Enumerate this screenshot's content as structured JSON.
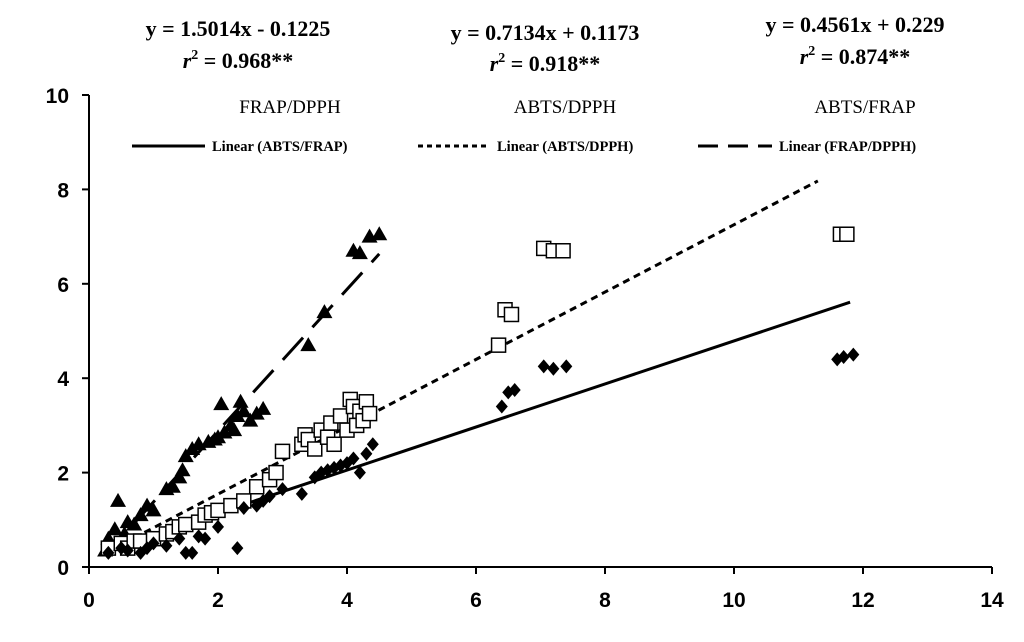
{
  "chart_data": {
    "type": "scatter",
    "xlim": [
      0,
      14
    ],
    "ylim": [
      0,
      10
    ],
    "x_ticks": [
      "0",
      "2",
      "4",
      "6",
      "8",
      "10",
      "12",
      "14"
    ],
    "y_ticks": [
      "0",
      "2",
      "4",
      "6",
      "8",
      "10"
    ],
    "grid": false,
    "legend_position": "top",
    "equations": [
      {
        "line": "y = 1.5014x - 0.1225",
        "r2": "0.968**"
      },
      {
        "line": "y = 0.7134x + 0.1173",
        "r2": "0.918**"
      },
      {
        "line": "y = 0.4561x + 0.229",
        "r2": "0.874**"
      }
    ],
    "group_labels": [
      "FRAP/DPPH",
      "ABTS/DPPH",
      "ABTS/FRAP"
    ],
    "legend": [
      {
        "label": "Linear (ABTS/FRAP)",
        "style": "solid"
      },
      {
        "label": "Linear (ABTS/DPPH)",
        "style": "dotted"
      },
      {
        "label": "Linear (FRAP/DPPH)",
        "style": "dashed"
      }
    ],
    "series": [
      {
        "name": "FRAP/DPPH",
        "marker": "triangle",
        "points": [
          [
            0.25,
            0.35
          ],
          [
            0.3,
            0.6
          ],
          [
            0.4,
            0.8
          ],
          [
            0.45,
            1.4
          ],
          [
            0.55,
            0.7
          ],
          [
            0.6,
            0.95
          ],
          [
            0.7,
            0.9
          ],
          [
            0.8,
            1.1
          ],
          [
            0.9,
            1.3
          ],
          [
            1.0,
            1.2
          ],
          [
            1.2,
            1.65
          ],
          [
            1.3,
            1.7
          ],
          [
            1.4,
            1.9
          ],
          [
            1.45,
            2.05
          ],
          [
            1.5,
            2.35
          ],
          [
            1.6,
            2.5
          ],
          [
            1.7,
            2.6
          ],
          [
            1.85,
            2.65
          ],
          [
            1.95,
            2.7
          ],
          [
            2.0,
            2.75
          ],
          [
            2.05,
            3.45
          ],
          [
            2.1,
            2.85
          ],
          [
            2.2,
            3.0
          ],
          [
            2.25,
            2.9
          ],
          [
            2.3,
            3.2
          ],
          [
            2.35,
            3.5
          ],
          [
            2.4,
            3.3
          ],
          [
            2.5,
            3.1
          ],
          [
            2.6,
            3.25
          ],
          [
            2.7,
            3.35
          ],
          [
            3.4,
            4.7
          ],
          [
            3.65,
            5.4
          ],
          [
            4.1,
            6.7
          ],
          [
            4.2,
            6.65
          ],
          [
            4.35,
            7.0
          ],
          [
            4.5,
            7.05
          ]
        ]
      },
      {
        "name": "ABTS/DPPH",
        "marker": "square-open",
        "points": [
          [
            0.3,
            0.4
          ],
          [
            0.5,
            0.5
          ],
          [
            0.6,
            0.4
          ],
          [
            0.7,
            0.55
          ],
          [
            0.8,
            0.55
          ],
          [
            1.0,
            0.6
          ],
          [
            1.2,
            0.7
          ],
          [
            1.3,
            0.75
          ],
          [
            1.4,
            0.85
          ],
          [
            1.5,
            0.9
          ],
          [
            1.7,
            0.95
          ],
          [
            1.8,
            1.1
          ],
          [
            1.9,
            1.15
          ],
          [
            2.0,
            1.2
          ],
          [
            2.2,
            1.3
          ],
          [
            2.4,
            1.4
          ],
          [
            2.6,
            1.7
          ],
          [
            2.8,
            1.85
          ],
          [
            2.9,
            2.0
          ],
          [
            3.0,
            2.45
          ],
          [
            3.3,
            2.6
          ],
          [
            3.35,
            2.8
          ],
          [
            3.4,
            2.7
          ],
          [
            3.5,
            2.5
          ],
          [
            3.6,
            2.9
          ],
          [
            3.7,
            2.75
          ],
          [
            3.75,
            3.05
          ],
          [
            3.8,
            2.6
          ],
          [
            3.9,
            3.2
          ],
          [
            4.0,
            2.9
          ],
          [
            4.05,
            3.55
          ],
          [
            4.1,
            3.4
          ],
          [
            4.15,
            3.0
          ],
          [
            4.2,
            3.3
          ],
          [
            4.25,
            3.1
          ],
          [
            4.3,
            3.5
          ],
          [
            4.35,
            3.25
          ],
          [
            6.35,
            4.7
          ],
          [
            6.45,
            5.45
          ],
          [
            6.55,
            5.35
          ],
          [
            7.05,
            6.75
          ],
          [
            7.2,
            6.7
          ],
          [
            7.35,
            6.7
          ],
          [
            11.65,
            7.05
          ],
          [
            11.75,
            7.05
          ]
        ]
      },
      {
        "name": "ABTS/FRAP",
        "marker": "diamond",
        "points": [
          [
            0.3,
            0.3
          ],
          [
            0.5,
            0.4
          ],
          [
            0.6,
            0.35
          ],
          [
            0.8,
            0.3
          ],
          [
            0.9,
            0.4
          ],
          [
            1.0,
            0.5
          ],
          [
            1.2,
            0.45
          ],
          [
            1.4,
            0.6
          ],
          [
            1.5,
            0.3
          ],
          [
            1.6,
            0.3
          ],
          [
            1.7,
            0.65
          ],
          [
            1.8,
            0.6
          ],
          [
            2.0,
            0.85
          ],
          [
            2.3,
            0.4
          ],
          [
            2.4,
            1.25
          ],
          [
            2.6,
            1.3
          ],
          [
            2.7,
            1.4
          ],
          [
            2.8,
            1.5
          ],
          [
            3.0,
            1.65
          ],
          [
            3.3,
            1.55
          ],
          [
            3.5,
            1.9
          ],
          [
            3.6,
            2.0
          ],
          [
            3.7,
            2.05
          ],
          [
            3.8,
            2.1
          ],
          [
            3.9,
            2.15
          ],
          [
            4.0,
            2.2
          ],
          [
            4.1,
            2.3
          ],
          [
            4.2,
            2.0
          ],
          [
            4.3,
            2.4
          ],
          [
            4.4,
            2.6
          ],
          [
            6.4,
            3.4
          ],
          [
            6.5,
            3.7
          ],
          [
            6.6,
            3.75
          ],
          [
            7.05,
            4.25
          ],
          [
            7.2,
            4.2
          ],
          [
            7.4,
            4.25
          ],
          [
            11.6,
            4.4
          ],
          [
            11.7,
            4.45
          ],
          [
            11.85,
            4.5
          ]
        ]
      }
    ],
    "trendlines": [
      {
        "name": "Linear (ABTS/FRAP)",
        "style": "solid",
        "slope": 0.4561,
        "intercept": 0.229,
        "x_range": [
          0.2,
          11.8
        ]
      },
      {
        "name": "Linear (ABTS/DPPH)",
        "style": "dotted",
        "slope": 0.7134,
        "intercept": 0.1173,
        "x_range": [
          0.2,
          11.3
        ]
      },
      {
        "name": "Linear (FRAP/DPPH)",
        "style": "dashed",
        "slope": 1.5014,
        "intercept": -0.1225,
        "x_range": [
          0.25,
          4.5
        ]
      }
    ]
  }
}
